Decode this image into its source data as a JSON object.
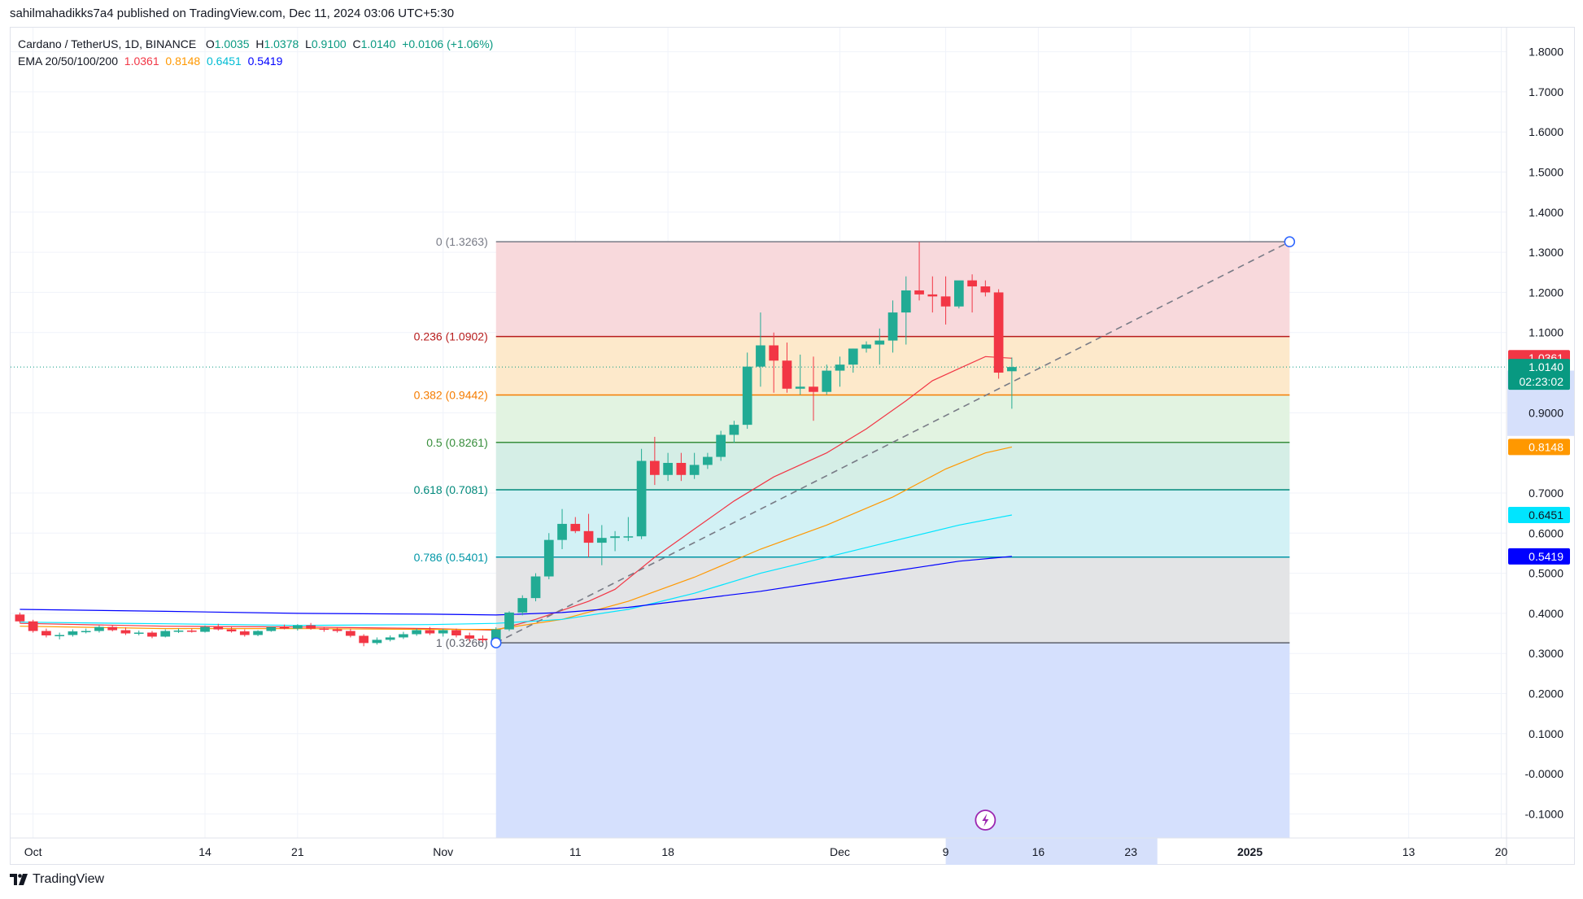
{
  "header": {
    "published_line": "sahilmahadikks7a4 published on TradingView.com, Dec 11, 2024 03:06 UTC+5:30"
  },
  "legend": {
    "symbol": "Cardano / TetherUS, 1D, BINANCE",
    "o_label": "O",
    "o": "1.0035",
    "h_label": "H",
    "h": "1.0378",
    "l_label": "L",
    "l": "0.9100",
    "c_label": "C",
    "c": "1.0140",
    "change": "+0.0106 (+1.06%)",
    "ema_label": "EMA 20/50/100/200",
    "ema20": "1.0361",
    "ema50": "0.8148",
    "ema100": "0.6451",
    "ema200": "0.5419"
  },
  "footer": {
    "brand": "TradingView"
  },
  "colors": {
    "up": "#22ab94",
    "down": "#f23645",
    "ema20": "#f23645",
    "ema50": "#ff9800",
    "ema100": "#00e5ff",
    "ema200": "#0000ff"
  },
  "chart_data": {
    "type": "candlestick",
    "title": "Cardano / TetherUS, 1D, BINANCE",
    "ylim": [
      -0.16,
      1.86
    ],
    "y_ticks": [
      "1.8000",
      "1.7000",
      "1.6000",
      "1.5000",
      "1.4000",
      "1.3000",
      "1.2000",
      "1.1000",
      "0.9000",
      "0.7000",
      "0.6000",
      "0.5000",
      "0.4000",
      "0.3000",
      "0.2000",
      "0.1000",
      "-0.0000",
      "-0.1000"
    ],
    "x_ticks": [
      {
        "label": "Oct",
        "day": 0
      },
      {
        "label": "14",
        "day": 13
      },
      {
        "label": "21",
        "day": 20
      },
      {
        "label": "Nov",
        "day": 31
      },
      {
        "label": "11",
        "day": 41
      },
      {
        "label": "18",
        "day": 48
      },
      {
        "label": "Dec",
        "day": 61
      },
      {
        "label": "9",
        "day": 69
      },
      {
        "label": "16",
        "day": 76
      },
      {
        "label": "23",
        "day": 83
      },
      {
        "label": "2025",
        "day": 92
      },
      {
        "label": "13",
        "day": 104
      },
      {
        "label": "20",
        "day": 111
      }
    ],
    "x_range_days": [
      -1.7,
      111.4
    ],
    "candles": [
      {
        "day": -1,
        "o": 0.397,
        "h": 0.402,
        "l": 0.376,
        "c": 0.38
      },
      {
        "day": 0,
        "o": 0.38,
        "h": 0.384,
        "l": 0.352,
        "c": 0.356
      },
      {
        "day": 1,
        "o": 0.356,
        "h": 0.362,
        "l": 0.34,
        "c": 0.345
      },
      {
        "day": 2,
        "o": 0.345,
        "h": 0.352,
        "l": 0.335,
        "c": 0.346
      },
      {
        "day": 3,
        "o": 0.346,
        "h": 0.36,
        "l": 0.342,
        "c": 0.355
      },
      {
        "day": 4,
        "o": 0.355,
        "h": 0.362,
        "l": 0.35,
        "c": 0.356
      },
      {
        "day": 5,
        "o": 0.356,
        "h": 0.37,
        "l": 0.352,
        "c": 0.366
      },
      {
        "day": 6,
        "o": 0.366,
        "h": 0.371,
        "l": 0.355,
        "c": 0.358
      },
      {
        "day": 7,
        "o": 0.358,
        "h": 0.365,
        "l": 0.346,
        "c": 0.35
      },
      {
        "day": 8,
        "o": 0.35,
        "h": 0.357,
        "l": 0.345,
        "c": 0.352
      },
      {
        "day": 9,
        "o": 0.352,
        "h": 0.356,
        "l": 0.338,
        "c": 0.342
      },
      {
        "day": 10,
        "o": 0.342,
        "h": 0.36,
        "l": 0.34,
        "c": 0.356
      },
      {
        "day": 11,
        "o": 0.356,
        "h": 0.362,
        "l": 0.351,
        "c": 0.357
      },
      {
        "day": 12,
        "o": 0.357,
        "h": 0.362,
        "l": 0.352,
        "c": 0.354
      },
      {
        "day": 13,
        "o": 0.354,
        "h": 0.37,
        "l": 0.352,
        "c": 0.366
      },
      {
        "day": 14,
        "o": 0.366,
        "h": 0.374,
        "l": 0.357,
        "c": 0.36
      },
      {
        "day": 15,
        "o": 0.36,
        "h": 0.368,
        "l": 0.352,
        "c": 0.355
      },
      {
        "day": 16,
        "o": 0.355,
        "h": 0.36,
        "l": 0.342,
        "c": 0.346
      },
      {
        "day": 17,
        "o": 0.346,
        "h": 0.358,
        "l": 0.343,
        "c": 0.356
      },
      {
        "day": 18,
        "o": 0.356,
        "h": 0.367,
        "l": 0.354,
        "c": 0.366
      },
      {
        "day": 19,
        "o": 0.366,
        "h": 0.372,
        "l": 0.36,
        "c": 0.362
      },
      {
        "day": 20,
        "o": 0.362,
        "h": 0.373,
        "l": 0.357,
        "c": 0.37
      },
      {
        "day": 21,
        "o": 0.37,
        "h": 0.376,
        "l": 0.359,
        "c": 0.362
      },
      {
        "day": 22,
        "o": 0.362,
        "h": 0.366,
        "l": 0.354,
        "c": 0.36
      },
      {
        "day": 23,
        "o": 0.36,
        "h": 0.364,
        "l": 0.352,
        "c": 0.356
      },
      {
        "day": 24,
        "o": 0.356,
        "h": 0.362,
        "l": 0.34,
        "c": 0.344
      },
      {
        "day": 25,
        "o": 0.344,
        "h": 0.348,
        "l": 0.318,
        "c": 0.326
      },
      {
        "day": 26,
        "o": 0.326,
        "h": 0.34,
        "l": 0.322,
        "c": 0.334
      },
      {
        "day": 27,
        "o": 0.334,
        "h": 0.345,
        "l": 0.33,
        "c": 0.34
      },
      {
        "day": 28,
        "o": 0.34,
        "h": 0.354,
        "l": 0.336,
        "c": 0.348
      },
      {
        "day": 29,
        "o": 0.348,
        "h": 0.362,
        "l": 0.344,
        "c": 0.358
      },
      {
        "day": 30,
        "o": 0.358,
        "h": 0.366,
        "l": 0.346,
        "c": 0.35
      },
      {
        "day": 31,
        "o": 0.35,
        "h": 0.362,
        "l": 0.342,
        "c": 0.358
      },
      {
        "day": 32,
        "o": 0.358,
        "h": 0.362,
        "l": 0.34,
        "c": 0.345
      },
      {
        "day": 33,
        "o": 0.345,
        "h": 0.352,
        "l": 0.33,
        "c": 0.337
      },
      {
        "day": 34,
        "o": 0.337,
        "h": 0.345,
        "l": 0.327,
        "c": 0.333
      },
      {
        "day": 35,
        "o": 0.333,
        "h": 0.365,
        "l": 0.328,
        "c": 0.36
      },
      {
        "day": 36,
        "o": 0.36,
        "h": 0.405,
        "l": 0.356,
        "c": 0.402
      },
      {
        "day": 37,
        "o": 0.402,
        "h": 0.445,
        "l": 0.395,
        "c": 0.438
      },
      {
        "day": 38,
        "o": 0.438,
        "h": 0.5,
        "l": 0.43,
        "c": 0.492
      },
      {
        "day": 39,
        "o": 0.492,
        "h": 0.6,
        "l": 0.485,
        "c": 0.583
      },
      {
        "day": 40,
        "o": 0.583,
        "h": 0.66,
        "l": 0.56,
        "c": 0.623
      },
      {
        "day": 41,
        "o": 0.623,
        "h": 0.64,
        "l": 0.6,
        "c": 0.605
      },
      {
        "day": 42,
        "o": 0.605,
        "h": 0.648,
        "l": 0.54,
        "c": 0.576
      },
      {
        "day": 43,
        "o": 0.576,
        "h": 0.62,
        "l": 0.52,
        "c": 0.588
      },
      {
        "day": 44,
        "o": 0.588,
        "h": 0.605,
        "l": 0.555,
        "c": 0.592
      },
      {
        "day": 45,
        "o": 0.592,
        "h": 0.64,
        "l": 0.58,
        "c": 0.592
      },
      {
        "day": 46,
        "o": 0.592,
        "h": 0.81,
        "l": 0.585,
        "c": 0.78
      },
      {
        "day": 47,
        "o": 0.78,
        "h": 0.84,
        "l": 0.72,
        "c": 0.745
      },
      {
        "day": 48,
        "o": 0.745,
        "h": 0.8,
        "l": 0.73,
        "c": 0.775
      },
      {
        "day": 49,
        "o": 0.775,
        "h": 0.8,
        "l": 0.73,
        "c": 0.745
      },
      {
        "day": 50,
        "o": 0.745,
        "h": 0.8,
        "l": 0.735,
        "c": 0.77
      },
      {
        "day": 51,
        "o": 0.77,
        "h": 0.8,
        "l": 0.76,
        "c": 0.79
      },
      {
        "day": 52,
        "o": 0.79,
        "h": 0.855,
        "l": 0.78,
        "c": 0.845
      },
      {
        "day": 53,
        "o": 0.845,
        "h": 0.88,
        "l": 0.825,
        "c": 0.87
      },
      {
        "day": 54,
        "o": 0.87,
        "h": 1.05,
        "l": 0.86,
        "c": 1.015
      },
      {
        "day": 55,
        "o": 1.015,
        "h": 1.15,
        "l": 0.965,
        "c": 1.068
      },
      {
        "day": 56,
        "o": 1.068,
        "h": 1.1,
        "l": 0.95,
        "c": 1.03
      },
      {
        "day": 57,
        "o": 1.03,
        "h": 1.075,
        "l": 0.95,
        "c": 0.96
      },
      {
        "day": 58,
        "o": 0.96,
        "h": 1.045,
        "l": 0.945,
        "c": 0.965
      },
      {
        "day": 59,
        "o": 0.965,
        "h": 1.04,
        "l": 0.88,
        "c": 0.952
      },
      {
        "day": 60,
        "o": 0.952,
        "h": 1.02,
        "l": 0.945,
        "c": 1.005
      },
      {
        "day": 61,
        "o": 1.005,
        "h": 1.04,
        "l": 0.965,
        "c": 1.02
      },
      {
        "day": 62,
        "o": 1.02,
        "h": 1.06,
        "l": 1.0,
        "c": 1.06
      },
      {
        "day": 63,
        "o": 1.06,
        "h": 1.078,
        "l": 1.05,
        "c": 1.07
      },
      {
        "day": 64,
        "o": 1.07,
        "h": 1.11,
        "l": 1.02,
        "c": 1.08
      },
      {
        "day": 65,
        "o": 1.08,
        "h": 1.18,
        "l": 1.05,
        "c": 1.15
      },
      {
        "day": 66,
        "o": 1.15,
        "h": 1.24,
        "l": 1.07,
        "c": 1.205
      },
      {
        "day": 67,
        "o": 1.205,
        "h": 1.326,
        "l": 1.18,
        "c": 1.195
      },
      {
        "day": 68,
        "o": 1.195,
        "h": 1.24,
        "l": 1.15,
        "c": 1.19
      },
      {
        "day": 69,
        "o": 1.19,
        "h": 1.24,
        "l": 1.12,
        "c": 1.165
      },
      {
        "day": 70,
        "o": 1.165,
        "h": 1.21,
        "l": 1.16,
        "c": 1.23
      },
      {
        "day": 71,
        "o": 1.23,
        "h": 1.245,
        "l": 1.15,
        "c": 1.215
      },
      {
        "day": 72,
        "o": 1.215,
        "h": 1.23,
        "l": 1.19,
        "c": 1.2
      },
      {
        "day": 73,
        "o": 1.2,
        "h": 1.208,
        "l": 0.985,
        "c": 1.0
      },
      {
        "day": 74,
        "o": 1.0035,
        "h": 1.0378,
        "l": 0.91,
        "c": 1.014
      }
    ],
    "ema": [
      {
        "name": "EMA 20",
        "color": "#f23645",
        "points": [
          [
            -1,
            0.375
          ],
          [
            10,
            0.368
          ],
          [
            20,
            0.366
          ],
          [
            30,
            0.362
          ],
          [
            35,
            0.358
          ],
          [
            38,
            0.385
          ],
          [
            42,
            0.43
          ],
          [
            44,
            0.46
          ],
          [
            47,
            0.54
          ],
          [
            50,
            0.61
          ],
          [
            53,
            0.68
          ],
          [
            56,
            0.74
          ],
          [
            60,
            0.8
          ],
          [
            63,
            0.86
          ],
          [
            66,
            0.93
          ],
          [
            68,
            0.98
          ],
          [
            70,
            1.01
          ],
          [
            72,
            1.04
          ],
          [
            74,
            1.036
          ]
        ]
      },
      {
        "name": "EMA 50",
        "color": "#ff9800",
        "points": [
          [
            -1,
            0.368
          ],
          [
            10,
            0.362
          ],
          [
            20,
            0.362
          ],
          [
            30,
            0.36
          ],
          [
            35,
            0.36
          ],
          [
            40,
            0.385
          ],
          [
            45,
            0.43
          ],
          [
            50,
            0.49
          ],
          [
            55,
            0.56
          ],
          [
            60,
            0.62
          ],
          [
            65,
            0.69
          ],
          [
            69,
            0.76
          ],
          [
            72,
            0.8
          ],
          [
            74,
            0.8148
          ]
        ]
      },
      {
        "name": "EMA 100",
        "color": "#00e5ff",
        "points": [
          [
            -1,
            0.378
          ],
          [
            10,
            0.374
          ],
          [
            20,
            0.37
          ],
          [
            30,
            0.372
          ],
          [
            35,
            0.375
          ],
          [
            40,
            0.385
          ],
          [
            45,
            0.41
          ],
          [
            50,
            0.45
          ],
          [
            55,
            0.5
          ],
          [
            60,
            0.54
          ],
          [
            65,
            0.58
          ],
          [
            70,
            0.62
          ],
          [
            74,
            0.6451
          ]
        ]
      },
      {
        "name": "EMA 200",
        "color": "#0000ff",
        "points": [
          [
            -1,
            0.41
          ],
          [
            10,
            0.405
          ],
          [
            20,
            0.4
          ],
          [
            30,
            0.398
          ],
          [
            35,
            0.396
          ],
          [
            40,
            0.402
          ],
          [
            45,
            0.415
          ],
          [
            50,
            0.435
          ],
          [
            55,
            0.455
          ],
          [
            60,
            0.48
          ],
          [
            65,
            0.505
          ],
          [
            70,
            0.53
          ],
          [
            74,
            0.5419
          ]
        ]
      }
    ],
    "fibonacci": {
      "from_day": 35,
      "to_day": 95,
      "levels": [
        {
          "label": "0 (1.3263)",
          "value": 1.3263,
          "color": "#787b86",
          "fill": "#f8d7da"
        },
        {
          "label": "0.236 (1.0902)",
          "value": 1.0902,
          "color": "#b71c1c",
          "fill": "#fde8c8"
        },
        {
          "label": "0.382 (0.9442)",
          "value": 0.9442,
          "color": "#f57c00",
          "fill": "#e0f2df"
        },
        {
          "label": "0.5 (0.8261)",
          "value": 0.8261,
          "color": "#388e3c",
          "fill": "#d3ede5"
        },
        {
          "label": "0.618 (0.7081)",
          "value": 0.7081,
          "color": "#00897b",
          "fill": "#d0f0f4"
        },
        {
          "label": "0.786 (0.5401)",
          "value": 0.5401,
          "color": "#0097a7",
          "fill": "#e2e3e5"
        },
        {
          "label": "1 (0.3266)",
          "value": 0.3266,
          "color": "#5d606b",
          "fill": "#d3defd"
        }
      ],
      "extension_bottom": -0.16
    },
    "trendline": {
      "start": [
        35,
        0.3266
      ],
      "end": [
        95,
        1.3263
      ]
    },
    "price_badges": [
      {
        "label": "1.0361",
        "value": 1.0361,
        "bg": "#f23645",
        "fg": "#ffffff"
      },
      {
        "label": "1.0140",
        "sublabel": "02:23:02",
        "value": 1.014,
        "bg": "#089981",
        "fg": "#ffffff"
      },
      {
        "label": "0.8148",
        "value": 0.8148,
        "bg": "#ff9800",
        "fg": "#ffffff"
      },
      {
        "label": "0.6451",
        "value": 0.6451,
        "bg": "#00e5ff",
        "fg": "#131722"
      },
      {
        "label": "0.5419",
        "value": 0.5419,
        "bg": "#0000ff",
        "fg": "#ffffff"
      }
    ],
    "last_price_line": 1.014,
    "x_highlight_days": [
      69,
      85
    ],
    "price_highlight": [
      0.8261,
      0.9442
    ]
  }
}
